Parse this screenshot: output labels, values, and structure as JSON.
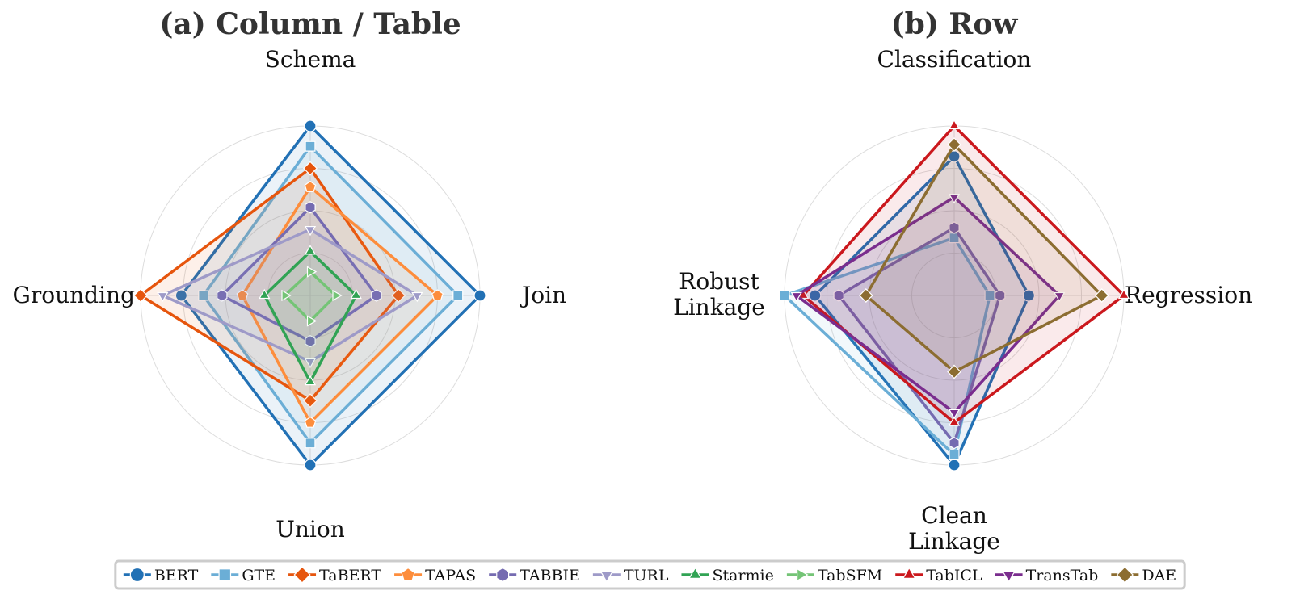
{
  "chart_data": [
    {
      "type": "radar",
      "title": "(a) Column / Table",
      "axes": [
        "Schema",
        "Join",
        "Union",
        "Grounding"
      ],
      "rmax": 1.0,
      "grid_rings": [
        0.25,
        0.5,
        0.75,
        1.0
      ],
      "grid": true,
      "series": [
        {
          "name": "BERT",
          "values": [
            1.0,
            1.0,
            1.0,
            0.76
          ]
        },
        {
          "name": "GTE",
          "values": [
            0.88,
            0.87,
            0.87,
            0.63
          ]
        },
        {
          "name": "TaBERT",
          "values": [
            0.75,
            0.52,
            0.62,
            1.0
          ]
        },
        {
          "name": "TAPAS",
          "values": [
            0.64,
            0.75,
            0.75,
            0.4
          ]
        },
        {
          "name": "TABBIE",
          "values": [
            0.52,
            0.39,
            0.27,
            0.52
          ]
        },
        {
          "name": "TURL",
          "values": [
            0.39,
            0.63,
            0.39,
            0.87
          ]
        },
        {
          "name": "Starmie",
          "values": [
            0.26,
            0.27,
            0.51,
            0.27
          ]
        },
        {
          "name": "TabSFM",
          "values": [
            0.14,
            0.15,
            0.15,
            0.15
          ]
        }
      ]
    },
    {
      "type": "radar",
      "title": "(b) Row",
      "axes": [
        "Classification",
        "Regression",
        "Clean\nLinkage",
        "Robust\nLinkage"
      ],
      "rmax": 1.0,
      "grid_rings": [
        0.25,
        0.5,
        0.75,
        1.0
      ],
      "grid": true,
      "series": [
        {
          "name": "BERT",
          "values": [
            0.82,
            0.44,
            1.0,
            0.82
          ]
        },
        {
          "name": "GTE",
          "values": [
            0.34,
            0.21,
            0.94,
            1.0
          ]
        },
        {
          "name": "TABBIE",
          "values": [
            0.4,
            0.27,
            0.87,
            0.68
          ]
        },
        {
          "name": "TabICL",
          "values": [
            1.0,
            1.0,
            0.75,
            0.89
          ]
        },
        {
          "name": "TransTab",
          "values": [
            0.58,
            0.62,
            0.69,
            0.93
          ]
        },
        {
          "name": "DAE",
          "values": [
            0.89,
            0.87,
            0.45,
            0.52
          ]
        }
      ]
    }
  ],
  "legend": {
    "placement": "bottom-center",
    "entries": [
      {
        "name": "BERT",
        "color": "#2271b5",
        "marker": "circle"
      },
      {
        "name": "GTE",
        "color": "#6baed6",
        "marker": "square"
      },
      {
        "name": "TaBERT",
        "color": "#e6550d",
        "marker": "diamond"
      },
      {
        "name": "TAPAS",
        "color": "#fd8d3c",
        "marker": "pentagon"
      },
      {
        "name": "TABBIE",
        "color": "#756bb1",
        "marker": "hexagon"
      },
      {
        "name": "TURL",
        "color": "#9e9ac8",
        "marker": "triangle-down"
      },
      {
        "name": "Starmie",
        "color": "#31a354",
        "marker": "triangle-up"
      },
      {
        "name": "TabSFM",
        "color": "#74c476",
        "marker": "triangle-right"
      },
      {
        "name": "TabICL",
        "color": "#cb181d",
        "marker": "triangle-up"
      },
      {
        "name": "TransTab",
        "color": "#7a2d8e",
        "marker": "triangle-down"
      },
      {
        "name": "DAE",
        "color": "#8c6d31",
        "marker": "diamond"
      }
    ]
  }
}
